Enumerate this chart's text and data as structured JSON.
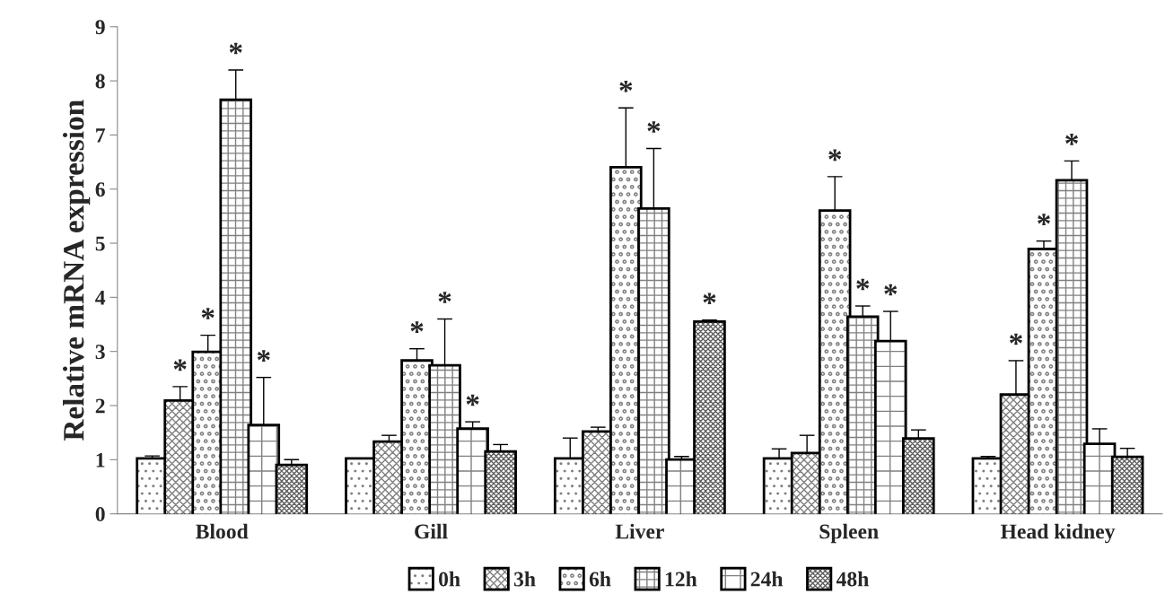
{
  "chart_data": {
    "type": "bar",
    "ylabel": "Relative mRNA expression",
    "categories": [
      "Blood",
      "Gill",
      "Liver",
      "Spleen",
      "Head kidney"
    ],
    "series": [
      {
        "name": "0h",
        "color": "#808080",
        "values": [
          1.0,
          1.0,
          1.0,
          1.0,
          1.0
        ],
        "errors": [
          [
            1.0,
            1.07
          ],
          [
            1.0,
            1.02
          ],
          [
            1.0,
            1.4
          ],
          [
            1.0,
            1.2
          ],
          [
            1.0,
            1.06
          ]
        ],
        "value_labels": [
          null,
          null,
          null,
          null,
          null
        ]
      },
      {
        "name": "3h",
        "color": "#808080",
        "values": [
          2.07,
          1.31,
          1.5,
          1.1,
          2.18
        ],
        "errors": [
          [
            2.07,
            2.35
          ],
          [
            1.31,
            1.45
          ],
          [
            1.5,
            1.6
          ],
          [
            1.1,
            1.45
          ],
          [
            2.18,
            2.83
          ]
        ],
        "value_labels": [
          "*",
          null,
          null,
          null,
          "*"
        ]
      },
      {
        "name": "6h",
        "color": "#808080",
        "values": [
          2.97,
          2.81,
          6.38,
          5.58,
          4.87
        ],
        "errors": [
          [
            2.97,
            3.3
          ],
          [
            2.81,
            3.05
          ],
          [
            6.38,
            7.5
          ],
          [
            5.58,
            6.23
          ],
          [
            4.87,
            5.04
          ]
        ],
        "value_labels": [
          "*",
          "*",
          "*",
          "*",
          "*"
        ]
      },
      {
        "name": "12h",
        "color": "#808080",
        "values": [
          7.63,
          2.72,
          5.62,
          3.62,
          6.14
        ],
        "errors": [
          [
            7.63,
            8.2
          ],
          [
            2.72,
            3.6
          ],
          [
            5.62,
            6.75
          ],
          [
            3.62,
            3.84
          ],
          [
            6.14,
            6.52
          ]
        ],
        "value_labels": [
          "*",
          "*",
          "*",
          "*",
          "*"
        ]
      },
      {
        "name": "24h",
        "color": "#808080",
        "values": [
          1.62,
          1.55,
          0.98,
          3.17,
          1.27
        ],
        "errors": [
          [
            1.62,
            2.52
          ],
          [
            1.55,
            1.7
          ],
          [
            0.98,
            1.06
          ],
          [
            3.17,
            3.74
          ],
          [
            1.27,
            1.57
          ]
        ],
        "value_labels": [
          "*",
          "*",
          null,
          "*",
          null
        ]
      },
      {
        "name": "48h",
        "color": "#606060",
        "values": [
          0.88,
          1.13,
          3.53,
          1.37,
          1.03
        ],
        "errors": [
          [
            0.88,
            1.0
          ],
          [
            1.13,
            1.28
          ],
          [
            3.53,
            3.58
          ],
          [
            1.37,
            1.55
          ],
          [
            1.03,
            1.21
          ]
        ],
        "value_labels": [
          null,
          null,
          "*",
          null,
          null
        ]
      }
    ],
    "ylim": [
      0,
      9
    ],
    "yticks": [
      0,
      1,
      2,
      3,
      4,
      5,
      6,
      7,
      8,
      9
    ],
    "grid": false,
    "legend": "bottom"
  }
}
